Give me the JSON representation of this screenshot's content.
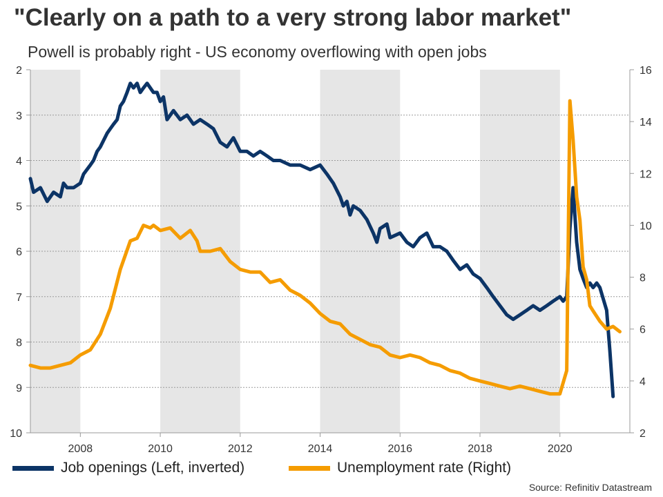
{
  "title": "\"Clearly on a path to a very strong labor market\"",
  "subtitle": "Powell is probably right - US economy overflowing with open jobs",
  "source": "Source: Refinitiv Datastream",
  "chart_data": {
    "type": "line",
    "x_ticks": [
      "2008",
      "2010",
      "2012",
      "2014",
      "2016",
      "2018",
      "2020"
    ],
    "x_range": [
      2006.75,
      2021.75
    ],
    "left_axis": {
      "ticks": [
        2,
        3,
        4,
        5,
        6,
        7,
        8,
        9,
        10
      ],
      "range": [
        2,
        10
      ],
      "inverted": true
    },
    "right_axis": {
      "ticks": [
        2,
        4,
        6,
        8,
        10,
        12,
        14,
        16
      ],
      "range": [
        2,
        16
      ]
    },
    "recession_like_shading": [
      [
        2006.75,
        2008.0
      ],
      [
        2010.0,
        2012.0
      ],
      [
        2014.0,
        2016.0
      ],
      [
        2018.0,
        2020.0
      ]
    ],
    "grid": "horizontal dotted",
    "legend_position": "bottom",
    "series": [
      {
        "name": "Job openings (Left, inverted)",
        "axis": "left",
        "color": "#0c3466",
        "x": [
          2006.75,
          2006.83,
          2007.0,
          2007.17,
          2007.33,
          2007.5,
          2007.58,
          2007.67,
          2007.83,
          2008.0,
          2008.08,
          2008.25,
          2008.33,
          2008.42,
          2008.5,
          2008.67,
          2008.75,
          2008.83,
          2008.92,
          2009.0,
          2009.08,
          2009.17,
          2009.25,
          2009.33,
          2009.42,
          2009.5,
          2009.58,
          2009.67,
          2009.75,
          2009.83,
          2009.92,
          2010.0,
          2010.08,
          2010.17,
          2010.25,
          2010.33,
          2010.5,
          2010.67,
          2010.83,
          2011.0,
          2011.17,
          2011.33,
          2011.5,
          2011.67,
          2011.75,
          2011.83,
          2012.0,
          2012.17,
          2012.33,
          2012.5,
          2012.67,
          2012.83,
          2013.0,
          2013.25,
          2013.5,
          2013.75,
          2014.0,
          2014.17,
          2014.33,
          2014.5,
          2014.58,
          2014.67,
          2014.75,
          2014.83,
          2015.0,
          2015.17,
          2015.33,
          2015.42,
          2015.5,
          2015.67,
          2015.75,
          2016.0,
          2016.17,
          2016.33,
          2016.5,
          2016.67,
          2016.83,
          2017.0,
          2017.17,
          2017.33,
          2017.5,
          2017.67,
          2017.83,
          2018.0,
          2018.17,
          2018.33,
          2018.5,
          2018.67,
          2018.83,
          2019.0,
          2019.17,
          2019.33,
          2019.5,
          2019.67,
          2019.83,
          2020.0,
          2020.08,
          2020.17,
          2020.25,
          2020.33,
          2020.42,
          2020.5,
          2020.58,
          2020.67,
          2020.75,
          2020.83,
          2020.92,
          2021.0,
          2021.17,
          2021.25,
          2021.33
        ],
        "values": [
          4.4,
          4.7,
          4.6,
          4.9,
          4.7,
          4.8,
          4.5,
          4.6,
          4.6,
          4.5,
          4.3,
          4.1,
          4.0,
          3.8,
          3.7,
          3.4,
          3.3,
          3.2,
          3.1,
          2.8,
          2.7,
          2.5,
          2.3,
          2.4,
          2.3,
          2.5,
          2.4,
          2.3,
          2.4,
          2.5,
          2.5,
          2.7,
          2.6,
          3.1,
          3.0,
          2.9,
          3.1,
          3.0,
          3.2,
          3.1,
          3.2,
          3.3,
          3.6,
          3.7,
          3.6,
          3.5,
          3.8,
          3.8,
          3.9,
          3.8,
          3.9,
          4.0,
          4.0,
          4.1,
          4.1,
          4.2,
          4.1,
          4.3,
          4.5,
          4.8,
          5.0,
          4.9,
          5.2,
          5.0,
          5.1,
          5.3,
          5.6,
          5.8,
          5.5,
          5.4,
          5.7,
          5.6,
          5.8,
          5.9,
          5.7,
          5.6,
          5.9,
          5.9,
          6.0,
          6.2,
          6.4,
          6.3,
          6.5,
          6.6,
          6.8,
          7.0,
          7.2,
          7.4,
          7.5,
          7.4,
          7.3,
          7.2,
          7.3,
          7.2,
          7.1,
          7.0,
          7.1,
          7.0,
          5.5,
          4.6,
          5.8,
          6.4,
          6.6,
          6.8,
          6.7,
          6.8,
          6.7,
          6.8,
          7.3,
          8.2,
          9.2
        ],
        "note": "values are job openings in millions on inverted left axis"
      },
      {
        "name": "Unemployment rate (Right)",
        "axis": "right",
        "color": "#f59c00",
        "x": [
          2006.75,
          2007.0,
          2007.25,
          2007.5,
          2007.75,
          2008.0,
          2008.25,
          2008.5,
          2008.75,
          2009.0,
          2009.25,
          2009.42,
          2009.58,
          2009.75,
          2009.83,
          2010.0,
          2010.25,
          2010.5,
          2010.75,
          2010.92,
          2011.0,
          2011.25,
          2011.5,
          2011.75,
          2012.0,
          2012.25,
          2012.5,
          2012.75,
          2013.0,
          2013.25,
          2013.5,
          2013.75,
          2014.0,
          2014.25,
          2014.5,
          2014.75,
          2015.0,
          2015.25,
          2015.5,
          2015.75,
          2016.0,
          2016.25,
          2016.5,
          2016.75,
          2017.0,
          2017.25,
          2017.5,
          2017.75,
          2018.0,
          2018.25,
          2018.5,
          2018.75,
          2019.0,
          2019.25,
          2019.5,
          2019.75,
          2020.0,
          2020.17,
          2020.25,
          2020.33,
          2020.42,
          2020.5,
          2020.58,
          2020.67,
          2020.75,
          2020.83,
          2021.0,
          2021.17,
          2021.33,
          2021.5
        ],
        "values": [
          4.6,
          4.5,
          4.5,
          4.6,
          4.7,
          5.0,
          5.2,
          5.8,
          6.8,
          8.3,
          9.4,
          9.5,
          10.0,
          9.9,
          10.0,
          9.8,
          9.9,
          9.5,
          9.8,
          9.4,
          9.0,
          9.0,
          9.1,
          8.6,
          8.3,
          8.2,
          8.2,
          7.8,
          7.9,
          7.5,
          7.3,
          7.0,
          6.6,
          6.3,
          6.2,
          5.8,
          5.6,
          5.4,
          5.3,
          5.0,
          4.9,
          5.0,
          4.9,
          4.7,
          4.6,
          4.4,
          4.3,
          4.1,
          4.0,
          3.9,
          3.8,
          3.7,
          3.8,
          3.7,
          3.6,
          3.5,
          3.5,
          4.4,
          14.8,
          13.3,
          11.1,
          10.2,
          8.4,
          7.9,
          6.9,
          6.7,
          6.3,
          6.0,
          6.1,
          5.9
        ]
      }
    ]
  }
}
